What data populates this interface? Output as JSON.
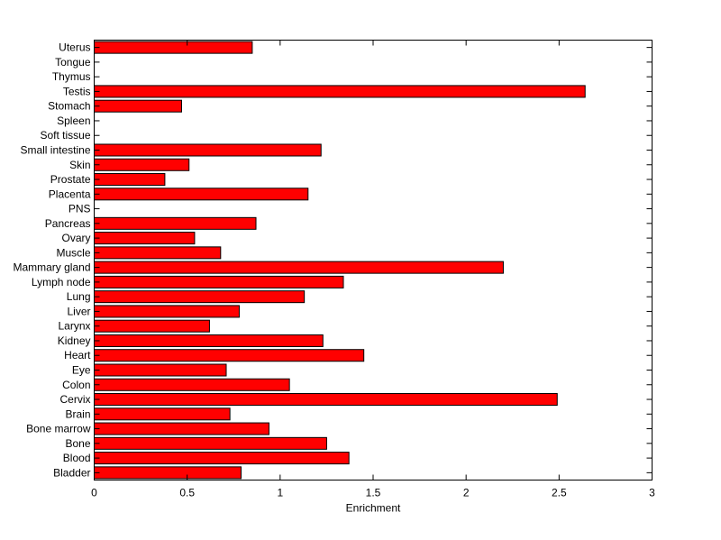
{
  "chart_data": {
    "type": "bar",
    "orientation": "horizontal",
    "title": "",
    "xlabel": "Enrichment",
    "ylabel": "",
    "xlim": [
      0,
      3
    ],
    "xticks": [
      0,
      0.5,
      1,
      1.5,
      2,
      2.5,
      3
    ],
    "xtick_labels": [
      "0",
      "0.5",
      "1",
      "1.5",
      "2",
      "2.5",
      "3"
    ],
    "grid": false,
    "legend": "none",
    "bar_color": "#ff0000",
    "edge_color": "#000000",
    "categories": [
      "Bladder",
      "Blood",
      "Bone",
      "Bone marrow",
      "Brain",
      "Cervix",
      "Colon",
      "Eye",
      "Heart",
      "Kidney",
      "Larynx",
      "Liver",
      "Lung",
      "Lymph node",
      "Mammary gland",
      "Muscle",
      "Ovary",
      "Pancreas",
      "PNS",
      "Placenta",
      "Prostate",
      "Skin",
      "Small intestine",
      "Soft tissue",
      "Spleen",
      "Stomach",
      "Testis",
      "Thymus",
      "Tongue",
      "Uterus"
    ],
    "values": [
      0.79,
      1.37,
      1.25,
      0.94,
      0.73,
      2.49,
      1.05,
      0.71,
      1.45,
      1.23,
      0.62,
      0.78,
      1.13,
      1.34,
      2.2,
      0.68,
      0.54,
      0.87,
      0,
      1.15,
      0.38,
      0.51,
      1.22,
      0,
      0,
      0.47,
      2.64,
      0,
      0,
      0.85
    ]
  }
}
